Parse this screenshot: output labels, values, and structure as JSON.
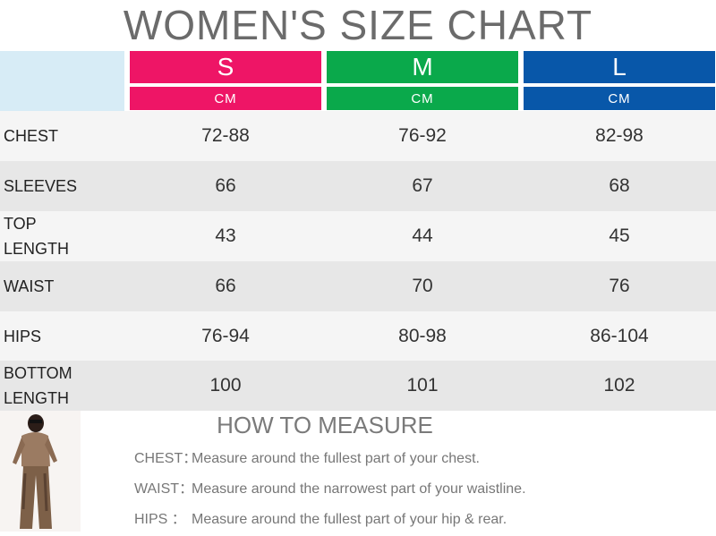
{
  "title": "WOMEN'S SIZE CHART",
  "sizes": [
    {
      "name": "S",
      "unit": "CM",
      "color": "#ee1566"
    },
    {
      "name": "M",
      "unit": "CM",
      "color": "#0aa94b"
    },
    {
      "name": "L",
      "unit": "CM",
      "color": "#0857a9"
    }
  ],
  "rows": [
    {
      "label": "CHEST",
      "values": [
        "72-88",
        "76-92",
        "82-98"
      ]
    },
    {
      "label": "SLEEVES",
      "values": [
        "66",
        "67",
        "68"
      ]
    },
    {
      "label": "TOP\nLENGTH",
      "values": [
        "43",
        "44",
        "45"
      ]
    },
    {
      "label": "WAIST",
      "values": [
        "66",
        "70",
        "76"
      ]
    },
    {
      "label": "HIPS",
      "values": [
        "76-94",
        "80-98",
        "86-104"
      ]
    },
    {
      "label": "BOTTOM\nLENGTH",
      "values": [
        "100",
        "101",
        "102"
      ]
    }
  ],
  "measure": {
    "title": "HOW TO MEASURE",
    "items": [
      {
        "term": "CHEST：",
        "text": "Measure around the fullest part of your chest."
      },
      {
        "term": "WAIST：",
        "text": "Measure around the narrowest part of your waistline."
      },
      {
        "term": "HIPS ：",
        "text": "Measure around the fullest part of your hip & rear."
      }
    ]
  }
}
